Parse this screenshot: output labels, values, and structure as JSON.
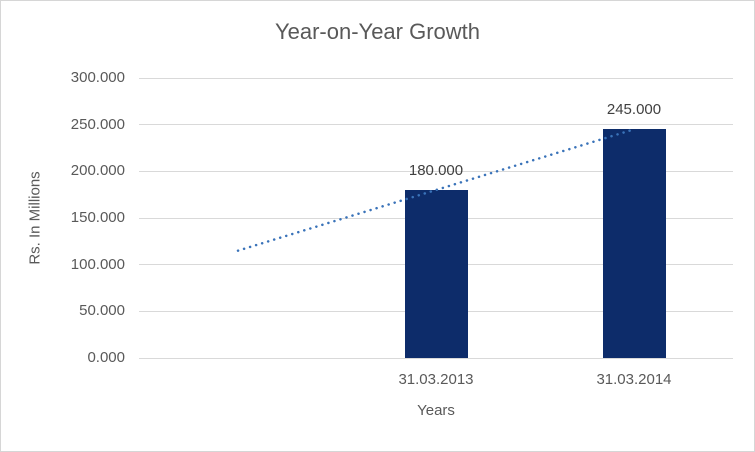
{
  "chart_data": {
    "type": "bar",
    "title": "Year-on-Year Growth",
    "xlabel": "Years",
    "ylabel": "Rs. In Millions",
    "categories": [
      "",
      "31.03.2013",
      "31.03.2014"
    ],
    "values": [
      null,
      180,
      245
    ],
    "data_labels": [
      null,
      "180.000",
      "245.000"
    ],
    "ylim": [
      0,
      300
    ],
    "yticks": [
      0,
      50,
      100,
      150,
      200,
      250,
      300
    ],
    "ytick_labels": [
      "0.000",
      "50.000",
      "100.000",
      "150.000",
      "200.000",
      "250.000",
      "300.000"
    ],
    "grid": true,
    "legend": "none",
    "trendline": {
      "type": "linear",
      "style": "dotted",
      "color": "#3a73b9",
      "points": [
        {
          "category_index": 0,
          "value": 115
        },
        {
          "category_index": 2,
          "value": 245
        }
      ]
    },
    "colors": {
      "bar": "#0d2c6a",
      "gridline": "#d9d9d9",
      "axis_text": "#595959",
      "title_text": "#595959",
      "data_label_text": "#404040",
      "border": "#d6d6d6",
      "background": "#ffffff"
    }
  }
}
